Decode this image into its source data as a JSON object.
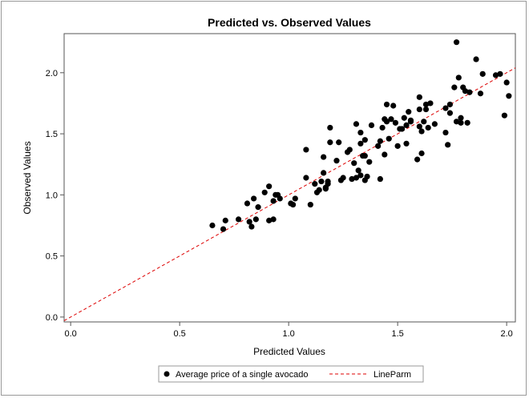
{
  "chart_data": {
    "type": "scatter",
    "title": "Predicted vs. Observed Values",
    "xlabel": "Predicted Values",
    "ylabel": "Observed Values",
    "xlim": [
      -0.03,
      2.04
    ],
    "ylim": [
      -0.04,
      2.32
    ],
    "xticks": [
      "0.0",
      "0.5",
      "1.0",
      "1.5",
      "2.0"
    ],
    "yticks": [
      "0.0",
      "0.5",
      "1.0",
      "1.5",
      "2.0"
    ],
    "grid": false,
    "legend_position": "bottom",
    "series": [
      {
        "name": "Average price of a single avocado",
        "color": "#000000",
        "marker": "filled-circle",
        "points": [
          [
            0.65,
            0.75
          ],
          [
            0.7,
            0.72
          ],
          [
            0.71,
            0.79
          ],
          [
            0.77,
            0.8
          ],
          [
            0.81,
            0.93
          ],
          [
            0.83,
            0.74
          ],
          [
            0.82,
            0.78
          ],
          [
            0.84,
            0.97
          ],
          [
            0.85,
            0.8
          ],
          [
            0.86,
            0.9
          ],
          [
            0.89,
            1.02
          ],
          [
            0.91,
            0.79
          ],
          [
            0.91,
            1.07
          ],
          [
            0.93,
            0.8
          ],
          [
            0.93,
            0.95
          ],
          [
            0.94,
            1.0
          ],
          [
            0.95,
            1.0
          ],
          [
            0.96,
            0.97
          ],
          [
            1.01,
            0.93
          ],
          [
            1.02,
            0.92
          ],
          [
            1.03,
            0.97
          ],
          [
            1.08,
            1.14
          ],
          [
            1.08,
            1.37
          ],
          [
            1.1,
            0.92
          ],
          [
            1.12,
            1.09
          ],
          [
            1.13,
            1.02
          ],
          [
            1.14,
            1.04
          ],
          [
            1.15,
            1.11
          ],
          [
            1.16,
            1.18
          ],
          [
            1.16,
            1.31
          ],
          [
            1.17,
            1.05
          ],
          [
            1.17,
            1.06
          ],
          [
            1.18,
            1.09
          ],
          [
            1.18,
            1.11
          ],
          [
            1.19,
            1.55
          ],
          [
            1.19,
            1.43
          ],
          [
            1.22,
            1.28
          ],
          [
            1.23,
            1.43
          ],
          [
            1.24,
            1.12
          ],
          [
            1.25,
            1.14
          ],
          [
            1.27,
            1.35
          ],
          [
            1.28,
            1.37
          ],
          [
            1.29,
            1.13
          ],
          [
            1.3,
            1.26
          ],
          [
            1.31,
            1.58
          ],
          [
            1.31,
            1.14
          ],
          [
            1.32,
            1.2
          ],
          [
            1.33,
            1.42
          ],
          [
            1.33,
            1.51
          ],
          [
            1.33,
            1.16
          ],
          [
            1.34,
            1.32
          ],
          [
            1.35,
            1.12
          ],
          [
            1.35,
            1.45
          ],
          [
            1.35,
            1.32
          ],
          [
            1.36,
            1.15
          ],
          [
            1.37,
            1.27
          ],
          [
            1.38,
            1.57
          ],
          [
            1.41,
            1.4
          ],
          [
            1.42,
            1.13
          ],
          [
            1.42,
            1.44
          ],
          [
            1.43,
            1.55
          ],
          [
            1.44,
            1.62
          ],
          [
            1.44,
            1.33
          ],
          [
            1.45,
            1.6
          ],
          [
            1.45,
            1.74
          ],
          [
            1.46,
            1.46
          ],
          [
            1.47,
            1.62
          ],
          [
            1.48,
            1.73
          ],
          [
            1.49,
            1.59
          ],
          [
            1.5,
            1.4
          ],
          [
            1.51,
            1.54
          ],
          [
            1.52,
            1.54
          ],
          [
            1.53,
            1.63
          ],
          [
            1.54,
            1.42
          ],
          [
            1.54,
            1.57
          ],
          [
            1.55,
            1.68
          ],
          [
            1.56,
            1.6
          ],
          [
            1.56,
            1.61
          ],
          [
            1.59,
            1.29
          ],
          [
            1.6,
            1.8
          ],
          [
            1.6,
            1.7
          ],
          [
            1.6,
            1.56
          ],
          [
            1.61,
            1.52
          ],
          [
            1.61,
            1.34
          ],
          [
            1.62,
            1.6
          ],
          [
            1.63,
            1.74
          ],
          [
            1.63,
            1.7
          ],
          [
            1.64,
            1.55
          ],
          [
            1.65,
            1.75
          ],
          [
            1.67,
            1.58
          ],
          [
            1.72,
            1.51
          ],
          [
            1.72,
            1.71
          ],
          [
            1.73,
            1.41
          ],
          [
            1.74,
            1.74
          ],
          [
            1.74,
            1.67
          ],
          [
            1.76,
            1.88
          ],
          [
            1.77,
            2.25
          ],
          [
            1.77,
            1.6
          ],
          [
            1.78,
            1.96
          ],
          [
            1.79,
            1.63
          ],
          [
            1.79,
            1.59
          ],
          [
            1.8,
            1.88
          ],
          [
            1.81,
            1.85
          ],
          [
            1.82,
            1.59
          ],
          [
            1.83,
            1.84
          ],
          [
            1.86,
            2.11
          ],
          [
            1.88,
            1.83
          ],
          [
            1.89,
            1.99
          ],
          [
            1.95,
            1.98
          ],
          [
            1.97,
            1.99
          ],
          [
            1.99,
            1.65
          ],
          [
            2.0,
            1.92
          ],
          [
            2.01,
            1.81
          ]
        ]
      },
      {
        "name": "LineParm",
        "color": "#dd0000",
        "line_style": "dashed",
        "x": [
          -0.03,
          2.04
        ],
        "y": [
          -0.03,
          2.04
        ]
      }
    ]
  }
}
